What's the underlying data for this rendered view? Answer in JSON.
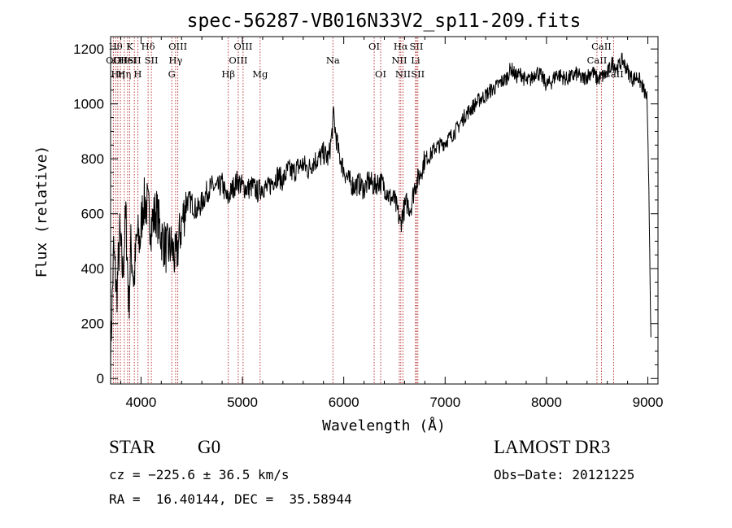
{
  "chart_data": {
    "type": "line",
    "title": "spec-56287-VB016N33V2_sp11-209.fits",
    "xlabel": "Wavelength (Å)",
    "ylabel": "Flux (relative)",
    "xlim": [
      3700,
      9100
    ],
    "ylim": [
      -20,
      1245
    ],
    "x_ticks": [
      4000,
      5000,
      6000,
      7000,
      8000,
      9000
    ],
    "y_ticks": [
      0,
      200,
      400,
      600,
      800,
      1000,
      1200
    ],
    "line_color": "#000000",
    "marker_color": "#b22222",
    "spectrum_points": [
      [
        3700,
        80
      ],
      [
        3730,
        470
      ],
      [
        3760,
        300
      ],
      [
        3790,
        520
      ],
      [
        3820,
        380
      ],
      [
        3850,
        600
      ],
      [
        3880,
        260
      ],
      [
        3900,
        480
      ],
      [
        3930,
        350
      ],
      [
        3960,
        520
      ],
      [
        3990,
        500
      ],
      [
        4020,
        640
      ],
      [
        4060,
        630
      ],
      [
        4100,
        560
      ],
      [
        4150,
        610
      ],
      [
        4200,
        520
      ],
      [
        4250,
        470
      ],
      [
        4300,
        480
      ],
      [
        4340,
        430
      ],
      [
        4400,
        560
      ],
      [
        4450,
        650
      ],
      [
        4500,
        640
      ],
      [
        4550,
        610
      ],
      [
        4600,
        640
      ],
      [
        4650,
        680
      ],
      [
        4700,
        700
      ],
      [
        4750,
        690
      ],
      [
        4800,
        710
      ],
      [
        4850,
        650
      ],
      [
        4900,
        690
      ],
      [
        4950,
        720
      ],
      [
        5000,
        700
      ],
      [
        5050,
        690
      ],
      [
        5100,
        700
      ],
      [
        5150,
        680
      ],
      [
        5200,
        700
      ],
      [
        5250,
        690
      ],
      [
        5300,
        720
      ],
      [
        5350,
        740
      ],
      [
        5400,
        720
      ],
      [
        5450,
        760
      ],
      [
        5500,
        750
      ],
      [
        5550,
        770
      ],
      [
        5600,
        780
      ],
      [
        5650,
        760
      ],
      [
        5700,
        790
      ],
      [
        5750,
        800
      ],
      [
        5800,
        820
      ],
      [
        5850,
        800
      ],
      [
        5880,
        880
      ],
      [
        5900,
        960
      ],
      [
        5920,
        890
      ],
      [
        5950,
        820
      ],
      [
        6000,
        760
      ],
      [
        6050,
        720
      ],
      [
        6100,
        700
      ],
      [
        6150,
        710
      ],
      [
        6200,
        690
      ],
      [
        6250,
        720
      ],
      [
        6300,
        700
      ],
      [
        6350,
        720
      ],
      [
        6400,
        700
      ],
      [
        6450,
        660
      ],
      [
        6500,
        650
      ],
      [
        6530,
        610
      ],
      [
        6560,
        560
      ],
      [
        6580,
        600
      ],
      [
        6620,
        640
      ],
      [
        6660,
        620
      ],
      [
        6700,
        700
      ],
      [
        6750,
        740
      ],
      [
        6800,
        800
      ],
      [
        6850,
        810
      ],
      [
        6900,
        840
      ],
      [
        6950,
        850
      ],
      [
        7000,
        860
      ],
      [
        7050,
        880
      ],
      [
        7100,
        900
      ],
      [
        7150,
        930
      ],
      [
        7200,
        960
      ],
      [
        7250,
        980
      ],
      [
        7300,
        1000
      ],
      [
        7350,
        1020
      ],
      [
        7400,
        1030
      ],
      [
        7450,
        1050
      ],
      [
        7500,
        1060
      ],
      [
        7550,
        1080
      ],
      [
        7600,
        1090
      ],
      [
        7650,
        1130
      ],
      [
        7700,
        1100
      ],
      [
        7750,
        1110
      ],
      [
        7800,
        1080
      ],
      [
        7850,
        1090
      ],
      [
        7900,
        1120
      ],
      [
        7950,
        1100
      ],
      [
        8000,
        1070
      ],
      [
        8050,
        1080
      ],
      [
        8100,
        1110
      ],
      [
        8150,
        1100
      ],
      [
        8200,
        1090
      ],
      [
        8250,
        1100
      ],
      [
        8300,
        1110
      ],
      [
        8350,
        1090
      ],
      [
        8400,
        1100
      ],
      [
        8450,
        1120
      ],
      [
        8500,
        1090
      ],
      [
        8550,
        1100
      ],
      [
        8600,
        1110
      ],
      [
        8650,
        1150
      ],
      [
        8700,
        1130
      ],
      [
        8750,
        1160
      ],
      [
        8800,
        1120
      ],
      [
        8850,
        1090
      ],
      [
        8900,
        1100
      ],
      [
        8950,
        1060
      ],
      [
        8990,
        1020
      ],
      [
        9010,
        700
      ],
      [
        9030,
        150
      ]
    ],
    "lines": [
      {
        "x": 3727,
        "label": "OII",
        "row": 2
      },
      {
        "x": 3750,
        "label": "Hθ",
        "row": 1
      },
      {
        "x": 3771,
        "label": "Hη",
        "row": 3
      },
      {
        "x": 3797,
        "label": "OII",
        "row": 2
      },
      {
        "x": 3835,
        "label": "Hη",
        "row": 3
      },
      {
        "x": 3868,
        "label": "HeI",
        "row": 2
      },
      {
        "x": 3889,
        "label": "K",
        "row": 1
      },
      {
        "x": 3934,
        "label": "SII",
        "row": 2
      },
      {
        "x": 3968,
        "label": "H",
        "row": 3
      },
      {
        "x": 4070,
        "label": "Hδ",
        "row": 1
      },
      {
        "x": 4102,
        "label": "SII",
        "row": 2
      },
      {
        "x": 4304,
        "label": "G",
        "row": 3
      },
      {
        "x": 4341,
        "label": "Hγ",
        "row": 2
      },
      {
        "x": 4363,
        "label": "OIII",
        "row": 1
      },
      {
        "x": 4861,
        "label": "Hβ",
        "row": 3
      },
      {
        "x": 4959,
        "label": "OIII",
        "row": 2
      },
      {
        "x": 5007,
        "label": "OIII",
        "row": 1
      },
      {
        "x": 5175,
        "label": "Mg",
        "row": 3
      },
      {
        "x": 5893,
        "label": "Na",
        "row": 2
      },
      {
        "x": 6300,
        "label": "OI",
        "row": 1
      },
      {
        "x": 6364,
        "label": "OI",
        "row": 3
      },
      {
        "x": 6548,
        "label": "NII",
        "row": 2
      },
      {
        "x": 6563,
        "label": "Hα",
        "row": 1
      },
      {
        "x": 6584,
        "label": "NII",
        "row": 3
      },
      {
        "x": 6708,
        "label": "Li",
        "row": 2
      },
      {
        "x": 6717,
        "label": "SII",
        "row": 1
      },
      {
        "x": 6731,
        "label": "SII",
        "row": 3
      },
      {
        "x": 8498,
        "label": "CaII",
        "row": 2
      },
      {
        "x": 8542,
        "label": "CaII",
        "row": 1
      },
      {
        "x": 8662,
        "label": "CaII",
        "row": 3
      }
    ]
  },
  "info": {
    "class_label": "STAR",
    "subclass": "G0",
    "survey": "LAMOST DR3",
    "cz": "cz = −225.6 ± 36.5 km/s",
    "obs_date": "Obs−Date: 20121225",
    "coords": "RA =  16.40144, DEC =  35.58944"
  }
}
